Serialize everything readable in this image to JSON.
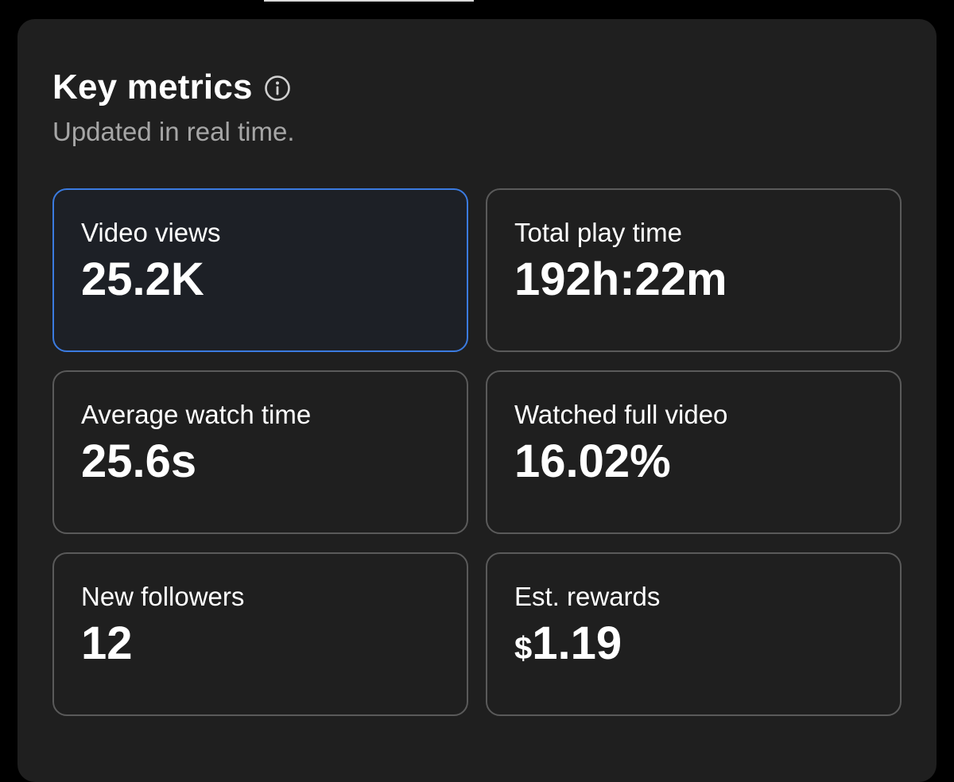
{
  "header": {
    "title": "Key metrics",
    "info_icon": "info-circle-icon",
    "subtitle": "Updated in real time."
  },
  "metrics": [
    {
      "label": "Video views",
      "value": "25.2K",
      "selected": true
    },
    {
      "label": "Total play time",
      "value": "192h:22m",
      "selected": false
    },
    {
      "label": "Average watch time",
      "value": "25.6s",
      "selected": false
    },
    {
      "label": "Watched full video",
      "value": "16.02%",
      "selected": false
    },
    {
      "label": "New followers",
      "value": "12",
      "selected": false
    },
    {
      "label": "Est. rewards",
      "value_currency": "$",
      "value_amount": "1.19",
      "selected": false
    }
  ],
  "colors": {
    "background": "#000000",
    "panel": "#1f1f1f",
    "card_border": "#5a5a5a",
    "selected_border": "#3b7be0",
    "text_primary": "#ffffff",
    "text_secondary": "#a6a6a6"
  }
}
